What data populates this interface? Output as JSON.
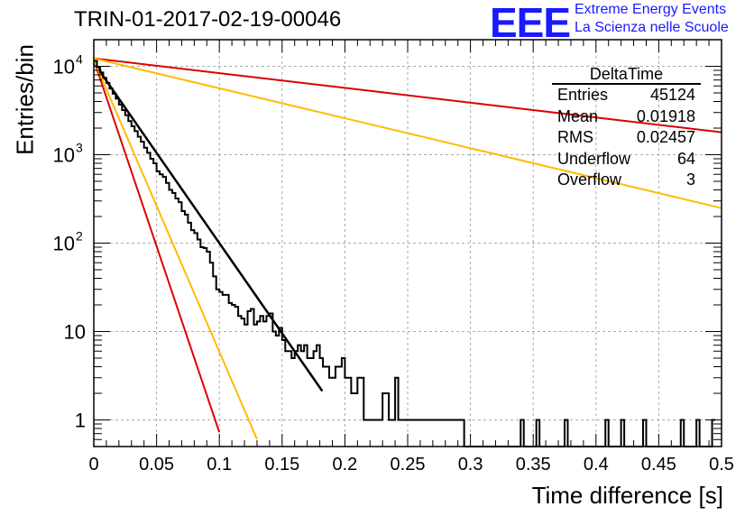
{
  "title": "TRIN-01-2017-02-19-00046",
  "logo": {
    "text": "EEE",
    "line1": "Extreme Energy Events",
    "line2": "La Scienza nelle Scuole"
  },
  "chart_data": {
    "type": "histogram",
    "xlabel": "Time difference [s]",
    "ylabel": "Entries/bin",
    "xlim": [
      0,
      0.5
    ],
    "ylim": [
      0.5,
      20000
    ],
    "yscale": "log",
    "grid": true,
    "xticks": [
      "0",
      "0.05",
      "0.1",
      "0.15",
      "0.2",
      "0.25",
      "0.3",
      "0.35",
      "0.4",
      "0.45",
      "0.5"
    ],
    "yticks": [
      {
        "value": 1,
        "label": "1"
      },
      {
        "value": 10,
        "label": "10"
      },
      {
        "value": 100,
        "label": "10",
        "exp": "2"
      },
      {
        "value": 1000,
        "label": "10",
        "exp": "3"
      },
      {
        "value": 10000,
        "label": "10",
        "exp": "4"
      }
    ],
    "bin_width": 0.0025,
    "histogram_counts": [
      11500,
      9800,
      8500,
      7400,
      6500,
      5600,
      4900,
      4300,
      3700,
      3200,
      2800,
      2400,
      2100,
      1850,
      1600,
      1400,
      1200,
      1050,
      900,
      800,
      650,
      600,
      560,
      480,
      400,
      370,
      320,
      290,
      230,
      210,
      170,
      140,
      130,
      110,
      90,
      88,
      80,
      60,
      42,
      30,
      28,
      26,
      26,
      21,
      20,
      19,
      15,
      14,
      12,
      17,
      18,
      12,
      13,
      15,
      13,
      15,
      16,
      10,
      9,
      11,
      8,
      6,
      6,
      5,
      6,
      7,
      6,
      7,
      5,
      5,
      6,
      7,
      5,
      4,
      4,
      3,
      3,
      4,
      4,
      5,
      3,
      3,
      2,
      2,
      3,
      3,
      1,
      1,
      1,
      1,
      1,
      1,
      2,
      2,
      1,
      1,
      3,
      1,
      1,
      1,
      1,
      1,
      1,
      1,
      1,
      1,
      1,
      1,
      1,
      1,
      1,
      1,
      1,
      1,
      1,
      1,
      1,
      1,
      0,
      0,
      0,
      0,
      0,
      0,
      0,
      0,
      0,
      0,
      0,
      0,
      0,
      0,
      0,
      0,
      0,
      0,
      1,
      0,
      0,
      0,
      0,
      1,
      0,
      0,
      0,
      0,
      0,
      0,
      0,
      0,
      1,
      0,
      0,
      0,
      0,
      0,
      0,
      0,
      0,
      0,
      0,
      0,
      0,
      1,
      0,
      0,
      0,
      0,
      1,
      0,
      0,
      0,
      0,
      0,
      0,
      1,
      0,
      0,
      0,
      0,
      0,
      0,
      0,
      0,
      0,
      0,
      0,
      1,
      0,
      0,
      0,
      0,
      1,
      0,
      0,
      0,
      0,
      1
    ],
    "fits": [
      {
        "color": "#000000",
        "y0": 11000,
        "slope": -47.0,
        "x_max": 0.182,
        "width": 2.5
      },
      {
        "color": "#dd0000",
        "y0": 11800,
        "slope": -97.0,
        "x_max": 0.1,
        "width": 2
      },
      {
        "color": "#ffbb00",
        "y0": 11800,
        "slope": -76.0,
        "x_max": 0.13,
        "width": 2
      },
      {
        "color": "#dd0000",
        "y0": 12300,
        "slope": -3.85,
        "x_max": 0.5,
        "width": 2
      },
      {
        "color": "#ffbb00",
        "y0": 12300,
        "slope": -7.8,
        "x_max": 0.5,
        "width": 2
      }
    ]
  },
  "stats": {
    "name": "DeltaTime",
    "rows": [
      {
        "label": "Entries",
        "value": "45124"
      },
      {
        "label": "Mean",
        "value": "0.01918"
      },
      {
        "label": "RMS",
        "value": "0.02457"
      },
      {
        "label": "Underflow",
        "value": "64"
      },
      {
        "label": "Overflow",
        "value": "3"
      }
    ]
  }
}
